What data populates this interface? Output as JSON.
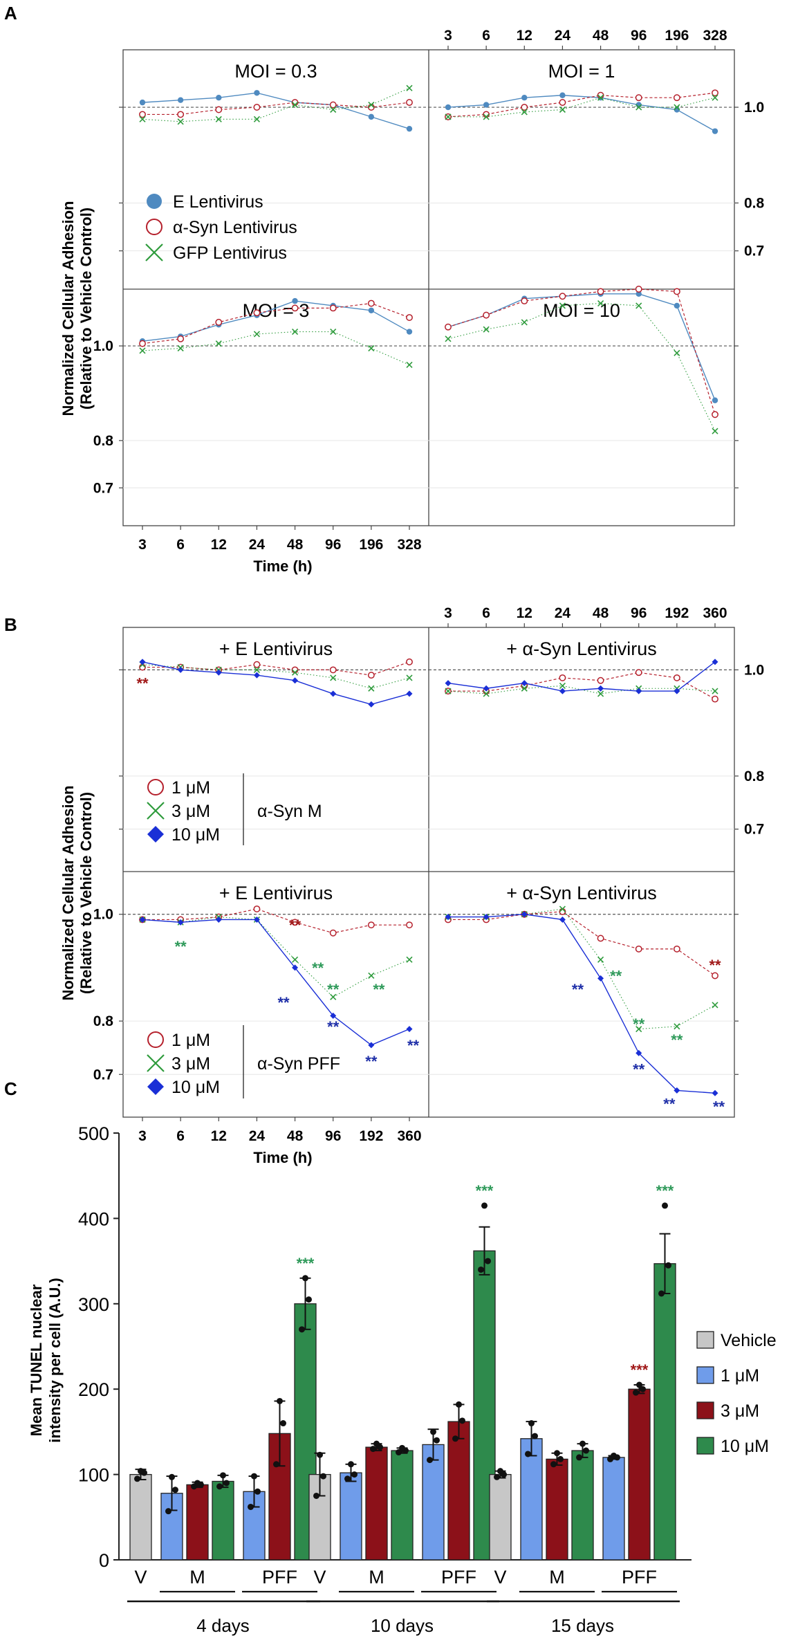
{
  "figure": {
    "panel_a_letter": "A",
    "panel_b_letter": "B",
    "panel_c_letter": "C",
    "ylabel_line1": "Normalized Cellular Adhesion",
    "ylabel_line2": "(Relative to Vehicle Control)",
    "xlabel": "Time (h)"
  },
  "colors": {
    "blue_A": "#4f8ac0",
    "red": "#b5202c",
    "green": "#2e9b3c",
    "blue_B": "#1a2fd6",
    "grey_bar": "#c7c7c7",
    "blue_bar": "#6f9cea",
    "red_bar": "#8c1119",
    "green_bar": "#2e8a4c",
    "sig_red": "#a01818",
    "sig_green": "#2f9a5a",
    "sig_blue": "#1f2fa8"
  },
  "chart_data": [
    {
      "id": "A",
      "type": "line",
      "x_labels": [
        "3",
        "6",
        "12",
        "24",
        "48",
        "96",
        "196",
        "328"
      ],
      "y_ticks": [
        "1.0",
        "0.8",
        "0.7"
      ],
      "legend": [
        "E Lentivirus",
        "α-Syn Lentivirus",
        "GFP Lentivirus"
      ],
      "ylim": [
        0.62,
        1.12
      ],
      "panels": [
        {
          "title": "MOI = 0.3",
          "series": [
            {
              "name": "E Lentivirus",
              "values": [
                1.01,
                1.015,
                1.02,
                1.03,
                1.01,
                1.005,
                0.98,
                0.955
              ]
            },
            {
              "name": "α-Syn Lentivirus",
              "values": [
                0.985,
                0.985,
                0.995,
                1.0,
                1.01,
                1.005,
                1.0,
                1.01
              ]
            },
            {
              "name": "GFP Lentivirus",
              "values": [
                0.975,
                0.97,
                0.975,
                0.975,
                1.005,
                0.995,
                1.005,
                1.04
              ]
            }
          ]
        },
        {
          "title": "MOI = 1",
          "series": [
            {
              "name": "E Lentivirus",
              "values": [
                1.0,
                1.005,
                1.02,
                1.025,
                1.02,
                1.005,
                0.995,
                0.95
              ]
            },
            {
              "name": "α-Syn Lentivirus",
              "values": [
                0.98,
                0.985,
                1.0,
                1.01,
                1.025,
                1.02,
                1.02,
                1.03
              ]
            },
            {
              "name": "GFP Lentivirus",
              "values": [
                0.98,
                0.98,
                0.99,
                0.995,
                1.02,
                1.0,
                1.0,
                1.02
              ]
            }
          ]
        },
        {
          "title": "MOI = 3",
          "series": [
            {
              "name": "E Lentivirus",
              "values": [
                1.01,
                1.02,
                1.045,
                1.065,
                1.095,
                1.085,
                1.075,
                1.03
              ]
            },
            {
              "name": "α-Syn Lentivirus",
              "values": [
                1.005,
                1.015,
                1.05,
                1.07,
                1.08,
                1.08,
                1.09,
                1.06
              ]
            },
            {
              "name": "GFP Lentivirus",
              "values": [
                0.99,
                0.995,
                1.005,
                1.025,
                1.03,
                1.03,
                0.995,
                0.96
              ]
            }
          ]
        },
        {
          "title": "MOI = 10",
          "series": [
            {
              "name": "E Lentivirus",
              "values": [
                1.04,
                1.065,
                1.1,
                1.105,
                1.11,
                1.11,
                1.085,
                0.885
              ]
            },
            {
              "name": "α-Syn Lentivirus",
              "values": [
                1.04,
                1.065,
                1.095,
                1.105,
                1.115,
                1.12,
                1.115,
                0.855
              ]
            },
            {
              "name": "GFP Lentivirus",
              "values": [
                1.015,
                1.035,
                1.05,
                1.085,
                1.09,
                1.085,
                0.985,
                0.82
              ]
            }
          ]
        }
      ]
    },
    {
      "id": "B",
      "type": "line",
      "x_labels": [
        "3",
        "6",
        "12",
        "24",
        "48",
        "96",
        "192",
        "360"
      ],
      "y_ticks": [
        "1.0",
        "0.8",
        "0.7"
      ],
      "legend_top": [
        "1 μM",
        "3 μM",
        "10 μM"
      ],
      "legend_top_group": "α-Syn M",
      "legend_bottom": [
        "1 μM",
        "3 μM",
        "10 μM"
      ],
      "legend_bottom_group": "α-Syn PFF",
      "ylim": [
        0.62,
        1.08
      ],
      "panels": [
        {
          "title": "+ E Lentivirus",
          "series": [
            {
              "name": "1 μM",
              "values": [
                1.005,
                1.005,
                1.0,
                1.01,
                1.0,
                1.0,
                0.99,
                1.015
              ]
            },
            {
              "name": "3 μM",
              "values": [
                1.01,
                1.005,
                1.0,
                1.0,
                0.995,
                0.985,
                0.965,
                0.985
              ]
            },
            {
              "name": "10 μM",
              "values": [
                1.015,
                1.0,
                0.995,
                0.99,
                0.98,
                0.955,
                0.935,
                0.955
              ]
            }
          ],
          "annotations": [
            {
              "text": "**",
              "x_index": 0,
              "value": 0.975,
              "color": "red"
            }
          ]
        },
        {
          "title": "+ α-Syn Lentivirus",
          "series": [
            {
              "name": "1 μM",
              "values": [
                0.96,
                0.96,
                0.97,
                0.985,
                0.98,
                0.995,
                0.985,
                0.945
              ]
            },
            {
              "name": "3 μM",
              "values": [
                0.96,
                0.955,
                0.965,
                0.97,
                0.955,
                0.965,
                0.965,
                0.96
              ]
            },
            {
              "name": "10 μM",
              "values": [
                0.975,
                0.965,
                0.975,
                0.96,
                0.965,
                0.96,
                0.96,
                1.015
              ]
            }
          ],
          "annotations": []
        },
        {
          "title": "+ E Lentivirus",
          "series": [
            {
              "name": "1 μM",
              "values": [
                0.99,
                0.99,
                0.995,
                1.01,
                0.985,
                0.965,
                0.98,
                0.98
              ]
            },
            {
              "name": "3 μM",
              "values": [
                0.99,
                0.985,
                0.995,
                0.99,
                0.915,
                0.845,
                0.885,
                0.915
              ]
            },
            {
              "name": "10 μM",
              "values": [
                0.99,
                0.985,
                0.99,
                0.99,
                0.9,
                0.81,
                0.755,
                0.785
              ]
            }
          ],
          "annotations": [
            {
              "text": "**",
              "x_index": 1,
              "value": 0.94,
              "color": "green"
            },
            {
              "text": "**",
              "x_index": 4,
              "value": 0.98,
              "color": "red"
            },
            {
              "text": "**",
              "x_index": 4.6,
              "value": 0.9,
              "color": "green"
            },
            {
              "text": "**",
              "x_index": 5,
              "value": 0.86,
              "color": "green"
            },
            {
              "text": "**",
              "x_index": 6.2,
              "value": 0.86,
              "color": "green"
            },
            {
              "text": "**",
              "x_index": 3.7,
              "value": 0.835,
              "color": "blue"
            },
            {
              "text": "**",
              "x_index": 5,
              "value": 0.79,
              "color": "blue"
            },
            {
              "text": "**",
              "x_index": 6,
              "value": 0.725,
              "color": "blue"
            },
            {
              "text": "**",
              "x_index": 7.1,
              "value": 0.755,
              "color": "blue"
            }
          ]
        },
        {
          "title": "+ α-Syn Lentivirus",
          "series": [
            {
              "name": "1 μM",
              "values": [
                0.99,
                0.99,
                1.0,
                1.005,
                0.955,
                0.935,
                0.935,
                0.885
              ]
            },
            {
              "name": "3 μM",
              "values": [
                0.995,
                0.995,
                1.0,
                1.01,
                0.915,
                0.785,
                0.79,
                0.83
              ]
            },
            {
              "name": "10 μM",
              "values": [
                0.995,
                0.995,
                1.0,
                0.99,
                0.88,
                0.74,
                0.67,
                0.665
              ]
            }
          ],
          "annotations": [
            {
              "text": "**",
              "x_index": 7,
              "value": 0.905,
              "color": "red"
            },
            {
              "text": "**",
              "x_index": 4.4,
              "value": 0.885,
              "color": "green"
            },
            {
              "text": "**",
              "x_index": 5,
              "value": 0.795,
              "color": "green"
            },
            {
              "text": "**",
              "x_index": 6,
              "value": 0.765,
              "color": "green"
            },
            {
              "text": "**",
              "x_index": 3.4,
              "value": 0.86,
              "color": "blue"
            },
            {
              "text": "**",
              "x_index": 5,
              "value": 0.71,
              "color": "blue"
            },
            {
              "text": "**",
              "x_index": 5.8,
              "value": 0.645,
              "color": "blue"
            },
            {
              "text": "**",
              "x_index": 7.1,
              "value": 0.64,
              "color": "blue"
            }
          ]
        }
      ]
    },
    {
      "id": "C",
      "type": "bar",
      "ylabel_line1": "Mean TUNEL nuclear",
      "ylabel_line2": "intensity per cell (A.U.)",
      "ylim": [
        0,
        500
      ],
      "y_ticks": [
        0,
        100,
        200,
        300,
        400,
        500
      ],
      "legend": [
        "Vehicle",
        "1 μM",
        "3 μM",
        "10 μM"
      ],
      "groups": [
        {
          "label": "4 days",
          "bars": [
            {
              "cond": "V",
              "series": "Vehicle",
              "value": 100,
              "err": 6,
              "points": [
                95,
                102,
                104
              ]
            },
            {
              "cond": "M",
              "series": "1 μM",
              "value": 78,
              "err": 20,
              "points": [
                57,
                82,
                97
              ]
            },
            {
              "cond": "M",
              "series": "3 μM",
              "value": 88,
              "err": 3,
              "points": [
                86,
                88,
                90
              ]
            },
            {
              "cond": "M",
              "series": "10 μM",
              "value": 92,
              "err": 7,
              "points": [
                86,
                90,
                99
              ]
            },
            {
              "cond": "PFF",
              "series": "1 μM",
              "value": 80,
              "err": 18,
              "points": [
                62,
                80,
                98
              ]
            },
            {
              "cond": "PFF",
              "series": "3 μM",
              "value": 148,
              "err": 38,
              "points": [
                112,
                160,
                186
              ]
            },
            {
              "cond": "PFF",
              "series": "10 μM",
              "value": 300,
              "err": 30,
              "points": [
                270,
                305,
                330
              ],
              "sig": "***",
              "sig_color": "green"
            }
          ]
        },
        {
          "label": "10 days",
          "bars": [
            {
              "cond": "V",
              "series": "Vehicle",
              "value": 100,
              "err": 25,
              "points": [
                75,
                98,
                123
              ]
            },
            {
              "cond": "M",
              "series": "1 μM",
              "value": 102,
              "err": 10,
              "points": [
                95,
                100,
                112
              ]
            },
            {
              "cond": "M",
              "series": "3 μM",
              "value": 132,
              "err": 4,
              "points": [
                130,
                132,
                136
              ]
            },
            {
              "cond": "M",
              "series": "10 μM",
              "value": 128,
              "err": 3,
              "points": [
                126,
                128,
                131
              ]
            },
            {
              "cond": "PFF",
              "series": "1 μM",
              "value": 135,
              "err": 18,
              "points": [
                117,
                140,
                150
              ]
            },
            {
              "cond": "PFF",
              "series": "3 μM",
              "value": 162,
              "err": 20,
              "points": [
                142,
                163,
                182
              ]
            },
            {
              "cond": "PFF",
              "series": "10 μM",
              "value": 362,
              "err": 28,
              "points": [
                340,
                350,
                415
              ],
              "sig": "***",
              "sig_color": "green"
            }
          ]
        },
        {
          "label": "15 days",
          "bars": [
            {
              "cond": "V",
              "series": "Vehicle",
              "value": 100,
              "err": 4,
              "points": [
                97,
                100,
                104
              ]
            },
            {
              "cond": "M",
              "series": "1 μM",
              "value": 142,
              "err": 20,
              "points": [
                124,
                145,
                160
              ]
            },
            {
              "cond": "M",
              "series": "3 μM",
              "value": 118,
              "err": 7,
              "points": [
                112,
                118,
                125
              ]
            },
            {
              "cond": "M",
              "series": "10 μM",
              "value": 128,
              "err": 8,
              "points": [
                120,
                128,
                136
              ]
            },
            {
              "cond": "PFF",
              "series": "1 μM",
              "value": 120,
              "err": 2,
              "points": [
                118,
                120,
                122
              ]
            },
            {
              "cond": "PFF",
              "series": "3 μM",
              "value": 200,
              "err": 5,
              "points": [
                196,
                200,
                205
              ],
              "sig": "***",
              "sig_color": "red"
            },
            {
              "cond": "PFF",
              "series": "10 μM",
              "value": 347,
              "err": 35,
              "points": [
                312,
                345,
                415
              ],
              "sig": "***",
              "sig_color": "green"
            }
          ]
        }
      ]
    }
  ]
}
